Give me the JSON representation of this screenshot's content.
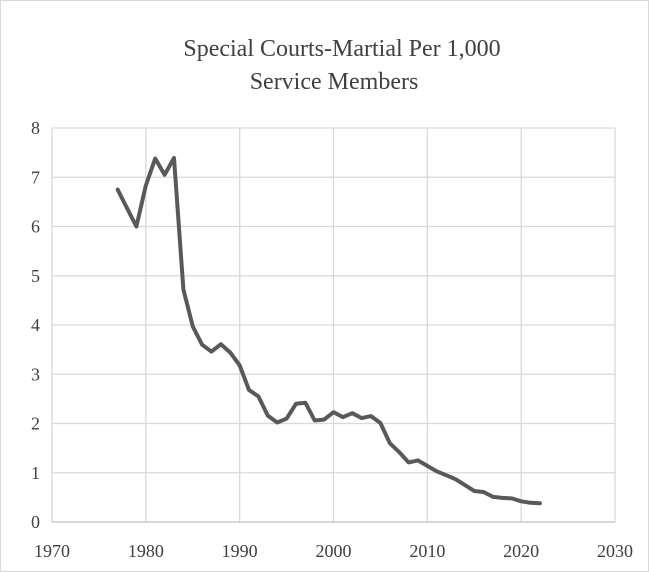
{
  "chart_data": {
    "type": "line",
    "title_line1": "Special Courts-Martial Per 1,000",
    "title_line2": "Service Members",
    "xlabel": "",
    "ylabel": "",
    "xlim": [
      1970,
      2030
    ],
    "ylim": [
      0,
      8
    ],
    "x_ticks": [
      1970,
      1980,
      1990,
      2000,
      2010,
      2020,
      2030
    ],
    "y_ticks": [
      0,
      1,
      2,
      3,
      4,
      5,
      6,
      7,
      8
    ],
    "grid": true,
    "legend": "none",
    "series": [
      {
        "color": "#595959",
        "x": [
          1977,
          1978,
          1979,
          1980,
          1981,
          1982,
          1983,
          1984,
          1985,
          1986,
          1987,
          1988,
          1989,
          1990,
          1991,
          1992,
          1993,
          1994,
          1995,
          1996,
          1997,
          1998,
          1999,
          2000,
          2001,
          2002,
          2003,
          2004,
          2005,
          2006,
          2007,
          2008,
          2009,
          2010,
          2011,
          2012,
          2013,
          2014,
          2015,
          2016,
          2017,
          2018,
          2019,
          2020,
          2021,
          2022
        ],
        "y": [
          6.75,
          6.37,
          6.0,
          6.83,
          7.38,
          7.05,
          7.39,
          4.72,
          3.97,
          3.6,
          3.46,
          3.61,
          3.44,
          3.18,
          2.68,
          2.55,
          2.16,
          2.02,
          2.1,
          2.4,
          2.42,
          2.06,
          2.08,
          2.23,
          2.13,
          2.21,
          2.11,
          2.15,
          2.01,
          1.6,
          1.42,
          1.21,
          1.25,
          1.14,
          1.03,
          0.95,
          0.87,
          0.75,
          0.63,
          0.61,
          0.51,
          0.49,
          0.48,
          0.42,
          0.39,
          0.38
        ]
      }
    ]
  }
}
